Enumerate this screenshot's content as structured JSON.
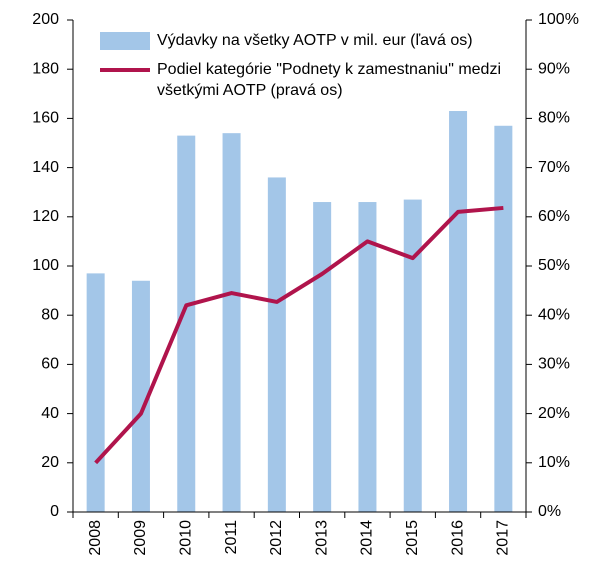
{
  "chart_data": {
    "type": "bar",
    "categories": [
      "2008",
      "2009",
      "2010",
      "2011",
      "2012",
      "2013",
      "2014",
      "2015",
      "2016",
      "2017"
    ],
    "series": [
      {
        "name": "Výdavky na všetky AOTP v mil. eur (ľavá os)",
        "color": "#a3c6e8",
        "type": "bar",
        "axis": "y",
        "values": [
          97,
          94,
          153,
          154,
          136,
          126,
          126,
          127,
          163,
          157
        ]
      },
      {
        "name": "Podiel kategórie \"Podnety k zamestnaniu\" medzi všetkými AOTP (pravá os)",
        "color": "#b0144c",
        "type": "line",
        "axis": "y2",
        "values": [
          10,
          20,
          42,
          44.5,
          42.7,
          48.4,
          55,
          51.6,
          61,
          61.8
        ]
      }
    ],
    "ylim": [
      0,
      200
    ],
    "yticks": [
      0,
      20,
      40,
      60,
      80,
      100,
      120,
      140,
      160,
      180,
      200
    ],
    "y2lim": [
      0,
      100
    ],
    "y2ticks": [
      {
        "value": 0,
        "label": "0%"
      },
      {
        "value": 10,
        "label": "10%"
      },
      {
        "value": 20,
        "label": "20%"
      },
      {
        "value": 30,
        "label": "30%"
      },
      {
        "value": 40,
        "label": "40%"
      },
      {
        "value": 50,
        "label": "50%"
      },
      {
        "value": 60,
        "label": "60%"
      },
      {
        "value": 70,
        "label": "70%"
      },
      {
        "value": 80,
        "label": "80%"
      },
      {
        "value": 90,
        "label": "90%"
      },
      {
        "value": 100,
        "label": "100%"
      }
    ],
    "grid": false,
    "legend": "top-left"
  }
}
